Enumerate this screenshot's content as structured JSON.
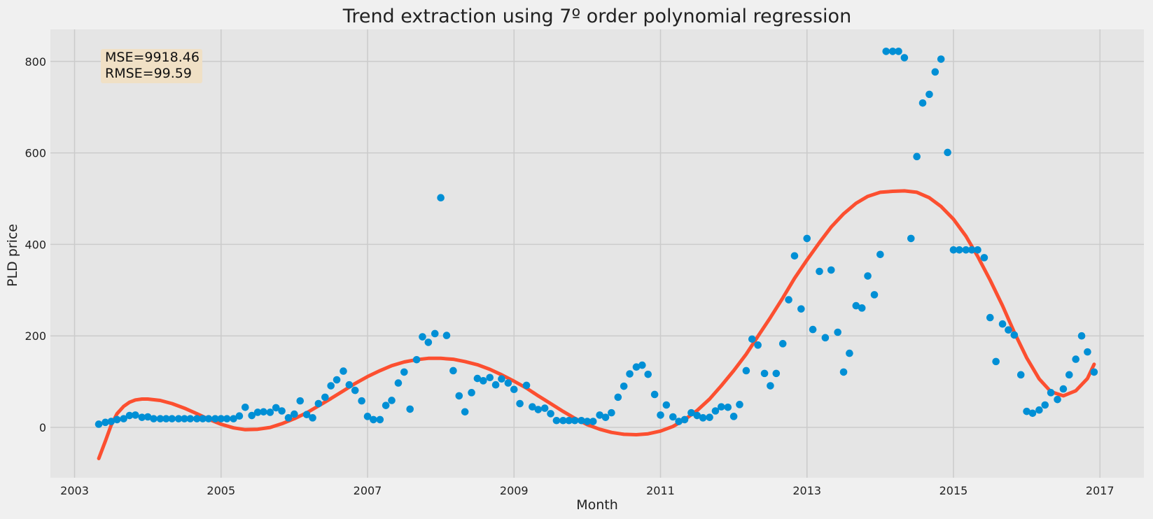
{
  "chart_data": {
    "type": "scatter",
    "title": "Trend extraction using 7º order polynomial regression",
    "xlabel": "Month",
    "ylabel": "PLD price",
    "xlim": [
      2002.67,
      2017.6
    ],
    "ylim": [
      -110,
      870
    ],
    "x_ticks": [
      2003,
      2005,
      2007,
      2009,
      2011,
      2013,
      2015,
      2017
    ],
    "y_ticks": [
      0,
      200,
      400,
      600,
      800
    ],
    "grid": true,
    "colors": {
      "points": "#008fd5",
      "trend": "#fc4f30",
      "plot_bg": "#e5e5e5",
      "figure_bg": "#f0f0f0",
      "grid": "#cbcbcb",
      "annotation_bg": "#f0e0c5"
    },
    "annotation": {
      "mse": "MSE=9918.46",
      "rmse": "RMSE=99.59"
    },
    "points": [
      [
        2003.33,
        7
      ],
      [
        2003.42,
        11
      ],
      [
        2003.5,
        13
      ],
      [
        2003.58,
        17
      ],
      [
        2003.67,
        19
      ],
      [
        2003.75,
        26
      ],
      [
        2003.83,
        27
      ],
      [
        2003.92,
        22
      ],
      [
        2004.0,
        23
      ],
      [
        2004.08,
        19
      ],
      [
        2004.17,
        19
      ],
      [
        2004.25,
        19
      ],
      [
        2004.33,
        19
      ],
      [
        2004.42,
        19
      ],
      [
        2004.5,
        19
      ],
      [
        2004.58,
        19
      ],
      [
        2004.67,
        19
      ],
      [
        2004.75,
        19
      ],
      [
        2004.83,
        19
      ],
      [
        2004.92,
        19
      ],
      [
        2005.0,
        19
      ],
      [
        2005.08,
        19
      ],
      [
        2005.17,
        19
      ],
      [
        2005.25,
        25
      ],
      [
        2005.33,
        44
      ],
      [
        2005.42,
        26
      ],
      [
        2005.5,
        33
      ],
      [
        2005.58,
        34
      ],
      [
        2005.67,
        33
      ],
      [
        2005.75,
        43
      ],
      [
        2005.83,
        36
      ],
      [
        2005.92,
        21
      ],
      [
        2006.0,
        29
      ],
      [
        2006.08,
        58
      ],
      [
        2006.17,
        28
      ],
      [
        2006.25,
        21
      ],
      [
        2006.33,
        52
      ],
      [
        2006.42,
        66
      ],
      [
        2006.5,
        91
      ],
      [
        2006.58,
        104
      ],
      [
        2006.67,
        123
      ],
      [
        2006.75,
        93
      ],
      [
        2006.83,
        81
      ],
      [
        2006.92,
        58
      ],
      [
        2007.0,
        24
      ],
      [
        2007.08,
        17
      ],
      [
        2007.17,
        17
      ],
      [
        2007.25,
        48
      ],
      [
        2007.33,
        59
      ],
      [
        2007.42,
        97
      ],
      [
        2007.5,
        121
      ],
      [
        2007.58,
        40
      ],
      [
        2007.67,
        148
      ],
      [
        2007.75,
        198
      ],
      [
        2007.83,
        186
      ],
      [
        2007.92,
        205
      ],
      [
        2008.0,
        502
      ],
      [
        2008.08,
        201
      ],
      [
        2008.17,
        124
      ],
      [
        2008.25,
        69
      ],
      [
        2008.33,
        34
      ],
      [
        2008.42,
        76
      ],
      [
        2008.5,
        107
      ],
      [
        2008.58,
        102
      ],
      [
        2008.67,
        109
      ],
      [
        2008.75,
        93
      ],
      [
        2008.83,
        106
      ],
      [
        2008.92,
        97
      ],
      [
        2009.0,
        83
      ],
      [
        2009.08,
        52
      ],
      [
        2009.17,
        92
      ],
      [
        2009.25,
        45
      ],
      [
        2009.33,
        39
      ],
      [
        2009.42,
        42
      ],
      [
        2009.5,
        30
      ],
      [
        2009.58,
        15
      ],
      [
        2009.67,
        15
      ],
      [
        2009.75,
        15
      ],
      [
        2009.83,
        15
      ],
      [
        2009.92,
        15
      ],
      [
        2010.0,
        13
      ],
      [
        2010.08,
        13
      ],
      [
        2010.17,
        27
      ],
      [
        2010.25,
        22
      ],
      [
        2010.33,
        32
      ],
      [
        2010.42,
        66
      ],
      [
        2010.5,
        90
      ],
      [
        2010.58,
        117
      ],
      [
        2010.67,
        132
      ],
      [
        2010.75,
        136
      ],
      [
        2010.83,
        116
      ],
      [
        2010.92,
        72
      ],
      [
        2011.0,
        27
      ],
      [
        2011.08,
        49
      ],
      [
        2011.17,
        23
      ],
      [
        2011.25,
        13
      ],
      [
        2011.33,
        17
      ],
      [
        2011.42,
        32
      ],
      [
        2011.5,
        26
      ],
      [
        2011.58,
        21
      ],
      [
        2011.67,
        22
      ],
      [
        2011.75,
        36
      ],
      [
        2011.83,
        45
      ],
      [
        2011.92,
        44
      ],
      [
        2012.0,
        24
      ],
      [
        2012.08,
        50
      ],
      [
        2012.17,
        124
      ],
      [
        2012.25,
        193
      ],
      [
        2012.33,
        180
      ],
      [
        2012.42,
        118
      ],
      [
        2012.5,
        91
      ],
      [
        2012.58,
        118
      ],
      [
        2012.67,
        183
      ],
      [
        2012.75,
        279
      ],
      [
        2012.83,
        375
      ],
      [
        2012.92,
        259
      ],
      [
        2013.0,
        413
      ],
      [
        2013.08,
        214
      ],
      [
        2013.17,
        341
      ],
      [
        2013.25,
        196
      ],
      [
        2013.33,
        344
      ],
      [
        2013.42,
        208
      ],
      [
        2013.5,
        121
      ],
      [
        2013.58,
        162
      ],
      [
        2013.67,
        266
      ],
      [
        2013.75,
        261
      ],
      [
        2013.83,
        331
      ],
      [
        2013.92,
        290
      ],
      [
        2014.0,
        378
      ],
      [
        2014.08,
        822
      ],
      [
        2014.17,
        822
      ],
      [
        2014.25,
        822
      ],
      [
        2014.33,
        808
      ],
      [
        2014.42,
        413
      ],
      [
        2014.5,
        592
      ],
      [
        2014.58,
        709
      ],
      [
        2014.67,
        728
      ],
      [
        2014.75,
        777
      ],
      [
        2014.83,
        805
      ],
      [
        2014.92,
        601
      ],
      [
        2015.0,
        388
      ],
      [
        2015.08,
        388
      ],
      [
        2015.17,
        388
      ],
      [
        2015.25,
        388
      ],
      [
        2015.33,
        388
      ],
      [
        2015.42,
        371
      ],
      [
        2015.5,
        240
      ],
      [
        2015.58,
        144
      ],
      [
        2015.67,
        226
      ],
      [
        2015.75,
        213
      ],
      [
        2015.83,
        202
      ],
      [
        2015.92,
        115
      ],
      [
        2016.0,
        35
      ],
      [
        2016.08,
        31
      ],
      [
        2016.17,
        38
      ],
      [
        2016.25,
        49
      ],
      [
        2016.33,
        76
      ],
      [
        2016.42,
        61
      ],
      [
        2016.5,
        84
      ],
      [
        2016.58,
        115
      ],
      [
        2016.67,
        149
      ],
      [
        2016.75,
        200
      ],
      [
        2016.83,
        165
      ],
      [
        2016.92,
        121
      ]
    ],
    "trend": [
      [
        2003.33,
        -68
      ],
      [
        2003.42,
        -30
      ],
      [
        2003.5,
        5
      ],
      [
        2003.58,
        30
      ],
      [
        2003.67,
        46
      ],
      [
        2003.75,
        55
      ],
      [
        2003.83,
        60
      ],
      [
        2003.92,
        62
      ],
      [
        2004.0,
        62
      ],
      [
        2004.17,
        59
      ],
      [
        2004.33,
        52
      ],
      [
        2004.5,
        42
      ],
      [
        2004.67,
        30
      ],
      [
        2004.83,
        18
      ],
      [
        2005.0,
        7
      ],
      [
        2005.17,
        -1
      ],
      [
        2005.33,
        -5
      ],
      [
        2005.5,
        -4
      ],
      [
        2005.67,
        0
      ],
      [
        2005.83,
        8
      ],
      [
        2006.0,
        19
      ],
      [
        2006.17,
        32
      ],
      [
        2006.33,
        47
      ],
      [
        2006.5,
        63
      ],
      [
        2006.67,
        80
      ],
      [
        2006.83,
        96
      ],
      [
        2007.0,
        111
      ],
      [
        2007.17,
        124
      ],
      [
        2007.33,
        135
      ],
      [
        2007.5,
        143
      ],
      [
        2007.67,
        148
      ],
      [
        2007.83,
        151
      ],
      [
        2008.0,
        151
      ],
      [
        2008.17,
        149
      ],
      [
        2008.33,
        144
      ],
      [
        2008.5,
        137
      ],
      [
        2008.67,
        127
      ],
      [
        2008.83,
        115
      ],
      [
        2009.0,
        101
      ],
      [
        2009.17,
        86
      ],
      [
        2009.33,
        69
      ],
      [
        2009.5,
        52
      ],
      [
        2009.67,
        35
      ],
      [
        2009.83,
        20
      ],
      [
        2010.0,
        6
      ],
      [
        2010.17,
        -4
      ],
      [
        2010.33,
        -11
      ],
      [
        2010.5,
        -15
      ],
      [
        2010.67,
        -16
      ],
      [
        2010.83,
        -14
      ],
      [
        2011.0,
        -8
      ],
      [
        2011.17,
        2
      ],
      [
        2011.33,
        17
      ],
      [
        2011.5,
        37
      ],
      [
        2011.67,
        62
      ],
      [
        2011.83,
        91
      ],
      [
        2012.0,
        124
      ],
      [
        2012.17,
        160
      ],
      [
        2012.33,
        199
      ],
      [
        2012.5,
        240
      ],
      [
        2012.67,
        283
      ],
      [
        2012.83,
        326
      ],
      [
        2013.0,
        366
      ],
      [
        2013.17,
        404
      ],
      [
        2013.33,
        438
      ],
      [
        2013.5,
        467
      ],
      [
        2013.67,
        490
      ],
      [
        2013.83,
        505
      ],
      [
        2014.0,
        514
      ],
      [
        2014.17,
        516
      ],
      [
        2014.33,
        517
      ],
      [
        2014.5,
        514
      ],
      [
        2014.67,
        502
      ],
      [
        2014.83,
        483
      ],
      [
        2015.0,
        455
      ],
      [
        2015.17,
        418
      ],
      [
        2015.33,
        374
      ],
      [
        2015.5,
        322
      ],
      [
        2015.67,
        266
      ],
      [
        2015.83,
        208
      ],
      [
        2016.0,
        152
      ],
      [
        2016.17,
        106
      ],
      [
        2016.33,
        78
      ],
      [
        2016.5,
        69
      ],
      [
        2016.67,
        80
      ],
      [
        2016.83,
        107
      ],
      [
        2016.92,
        138
      ]
    ]
  }
}
